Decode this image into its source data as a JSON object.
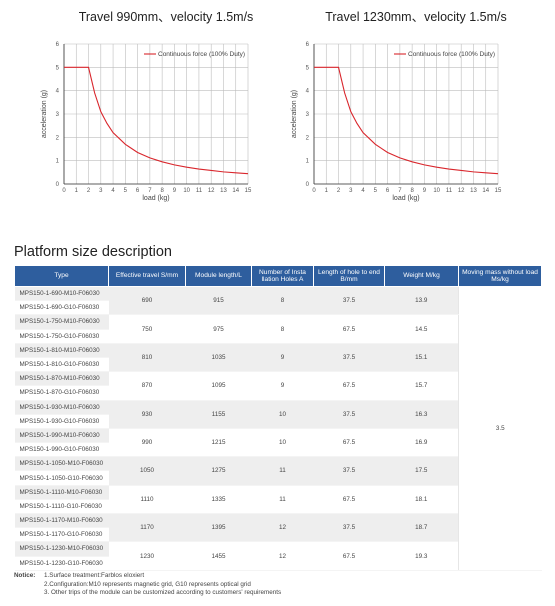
{
  "charts": {
    "left_title": "Travel 990mm、velocity 1.5m/s",
    "right_title": "Travel 1230mm、velocity 1.5m/s",
    "ylabel": "acceleration (g)",
    "xlabel": "load (kg)",
    "legend": "Continuous force (100% Duty)",
    "line_color": "#d9262c"
  },
  "chart_data": [
    {
      "type": "line",
      "title": "Travel 990mm、velocity 1.5m/s",
      "xlabel": "load (kg)",
      "ylabel": "acceleration (g)",
      "xlim": [
        0,
        15
      ],
      "ylim": [
        0,
        6
      ],
      "x_ticks": [
        "0",
        "1",
        "2",
        "3",
        "4",
        "5",
        "6",
        "7",
        "8",
        "9",
        "10",
        "11",
        "12",
        "13",
        "14",
        "15"
      ],
      "y_ticks": [
        "0",
        "1",
        "2",
        "3",
        "4",
        "5",
        "6"
      ],
      "grid": true,
      "legend_position": "top-right",
      "series": [
        {
          "name": "Continuous force (100% Duty)",
          "x": [
            0,
            1,
            2,
            2.5,
            3,
            3.5,
            4,
            5,
            6,
            7,
            8,
            9,
            10,
            11,
            12,
            13,
            14,
            15
          ],
          "y": [
            5,
            5,
            5,
            3.9,
            3.1,
            2.6,
            2.2,
            1.7,
            1.35,
            1.12,
            0.95,
            0.82,
            0.72,
            0.64,
            0.58,
            0.52,
            0.48,
            0.44
          ]
        }
      ]
    },
    {
      "type": "line",
      "title": "Travel 1230mm、velocity 1.5m/s",
      "xlabel": "load (kg)",
      "ylabel": "acceleration (g)",
      "xlim": [
        0,
        15
      ],
      "ylim": [
        0,
        6
      ],
      "x_ticks": [
        "0",
        "1",
        "2",
        "3",
        "4",
        "5",
        "6",
        "7",
        "8",
        "9",
        "10",
        "11",
        "12",
        "13",
        "14",
        "15"
      ],
      "y_ticks": [
        "0",
        "1",
        "2",
        "3",
        "4",
        "5",
        "6"
      ],
      "grid": true,
      "legend_position": "top-right",
      "series": [
        {
          "name": "Continuous force (100% Duty)",
          "x": [
            0,
            1,
            2,
            2.5,
            3,
            3.5,
            4,
            5,
            6,
            7,
            8,
            9,
            10,
            11,
            12,
            13,
            14,
            15
          ],
          "y": [
            5,
            5,
            5,
            3.9,
            3.1,
            2.6,
            2.2,
            1.7,
            1.35,
            1.12,
            0.95,
            0.82,
            0.72,
            0.64,
            0.58,
            0.52,
            0.48,
            0.44
          ]
        }
      ]
    }
  ],
  "section_title": "Platform size description",
  "table": {
    "headers": {
      "type": "Type",
      "travel": "Effective travel S/mm",
      "length": "Module length/L",
      "holes": "Number of Insta llation Holes A",
      "hole_len": "Length of hole to end B/mm",
      "weight": "Weight M/kg",
      "mass": "Moving mass without load Ms/kg"
    },
    "mass_value": "3.5",
    "groups": [
      {
        "types": [
          "MPS150-1-690-M10-F06030",
          "MPS150-1-690-G10-F06030"
        ],
        "travel": "690",
        "length": "915",
        "holes": "8",
        "hole_len": "37.5",
        "weight": "13.9"
      },
      {
        "types": [
          "MPS150-1-750-M10-F06030",
          "MPS150-1-750-G10-F06030"
        ],
        "travel": "750",
        "length": "975",
        "holes": "8",
        "hole_len": "67.5",
        "weight": "14.5"
      },
      {
        "types": [
          "MPS150-1-810-M10-F06030",
          "MPS150-1-810-G10-F06030"
        ],
        "travel": "810",
        "length": "1035",
        "holes": "9",
        "hole_len": "37.5",
        "weight": "15.1"
      },
      {
        "types": [
          "MPS150-1-870-M10-F06030",
          "MPS150-1-870-G10-F06030"
        ],
        "travel": "870",
        "length": "1095",
        "holes": "9",
        "hole_len": "67.5",
        "weight": "15.7"
      },
      {
        "types": [
          "MPS150-1-930-M10-F06030",
          "MPS150-1-930-G10-F06030"
        ],
        "travel": "930",
        "length": "1155",
        "holes": "10",
        "hole_len": "37.5",
        "weight": "16.3"
      },
      {
        "types": [
          "MPS150-1-990-M10-F06030",
          "MPS150-1-990-G10-F06030"
        ],
        "travel": "990",
        "length": "1215",
        "holes": "10",
        "hole_len": "67.5",
        "weight": "16.9"
      },
      {
        "types": [
          "MPS150-1-1050-M10-F06030",
          "MPS150-1-1050-G10-F06030"
        ],
        "travel": "1050",
        "length": "1275",
        "holes": "11",
        "hole_len": "37.5",
        "weight": "17.5"
      },
      {
        "types": [
          "MPS150-1-1110-M10-F06030",
          "MPS150-1-1110-G10-F06030"
        ],
        "travel": "1110",
        "length": "1335",
        "holes": "11",
        "hole_len": "67.5",
        "weight": "18.1"
      },
      {
        "types": [
          "MPS150-1-1170-M10-F06030",
          "MPS150-1-1170-G10-F06030"
        ],
        "travel": "1170",
        "length": "1395",
        "holes": "12",
        "hole_len": "37.5",
        "weight": "18.7"
      },
      {
        "types": [
          "MPS150-1-1230-M10-F06030",
          "MPS150-1-1230-G10-F06030"
        ],
        "travel": "1230",
        "length": "1455",
        "holes": "12",
        "hole_len": "67.5",
        "weight": "19.3"
      }
    ]
  },
  "notice": {
    "label": "Notice:",
    "items": [
      "1.Surface treatment:Farblos eloxiert",
      "2.Configuration:M10 represents magnetic grid, G10 represents optical grid",
      "3. Other trips of the module can be customized according to customers' requirements"
    ]
  }
}
